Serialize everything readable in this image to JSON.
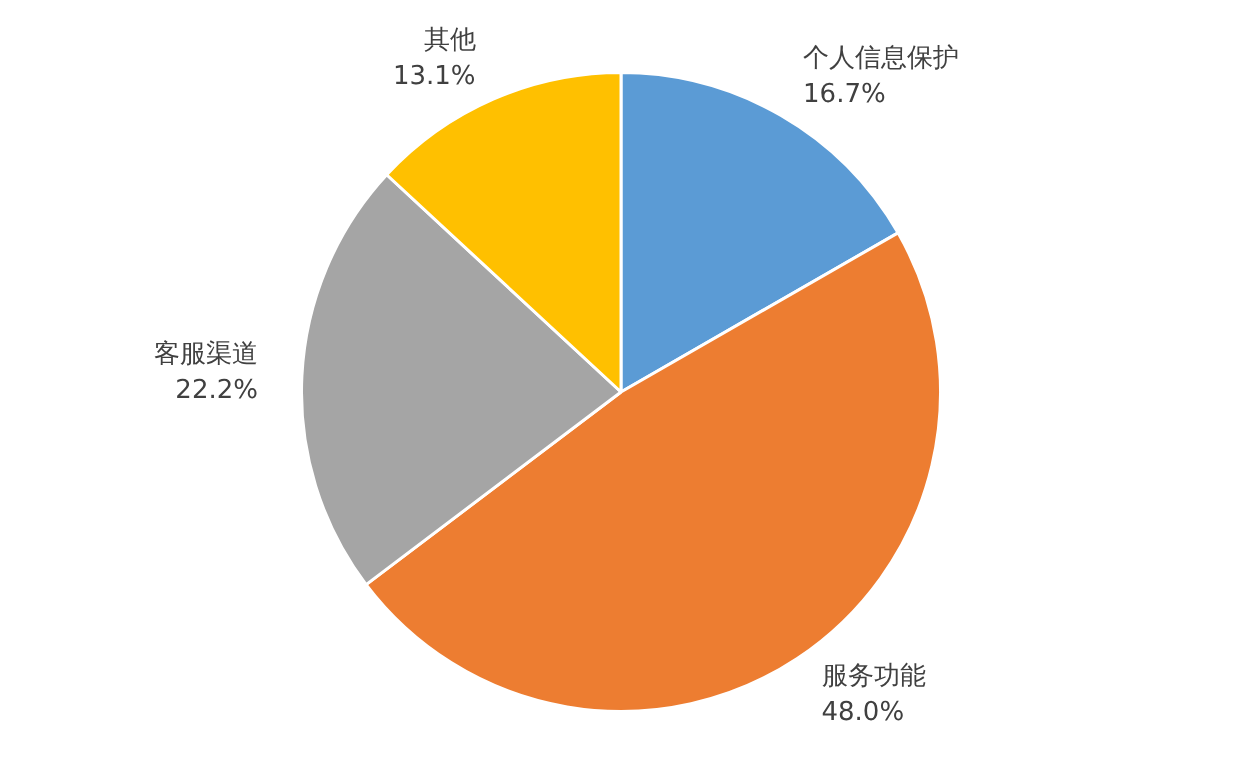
{
  "chart_data": {
    "type": "pie",
    "categories": [
      "个人信息保护",
      "服务功能",
      "客服渠道",
      "其他"
    ],
    "values": [
      16.7,
      48.0,
      22.2,
      13.1
    ],
    "value_labels": [
      "16.7%",
      "48.0%",
      "22.2%",
      "13.1%"
    ],
    "colors": [
      "#5b9bd5",
      "#ed7d31",
      "#a5a5a5",
      "#ffc000"
    ],
    "legend": false
  }
}
